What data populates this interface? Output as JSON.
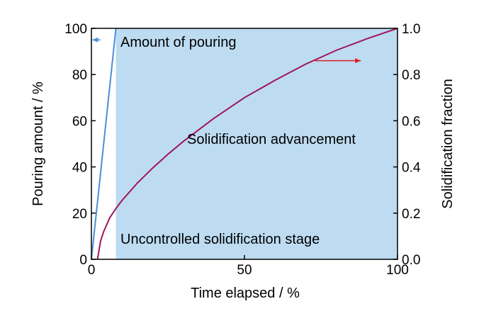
{
  "chart_data": {
    "type": "line",
    "xlabel": "Time elapsed / %",
    "ylabel_left": "Pouring amount / %",
    "ylabel_right": "Solidification fraction",
    "xlim": [
      0,
      100
    ],
    "ylim_left": [
      0,
      100
    ],
    "ylim_right": [
      0,
      1.0
    ],
    "x_ticks": [
      "0",
      "50",
      "100"
    ],
    "y_left_ticks": [
      "0",
      "20",
      "40",
      "60",
      "80",
      "100"
    ],
    "y_right_ticks": [
      "0.0",
      "0.2",
      "0.4",
      "0.6",
      "0.8",
      "1.0"
    ],
    "shaded_region": {
      "x": [
        8,
        100
      ],
      "color": "#bddcf2"
    },
    "series": [
      {
        "axis": "left",
        "color": "#4a8fd8",
        "x": [
          0,
          8
        ],
        "y": [
          0,
          100
        ]
      },
      {
        "axis": "right",
        "color": "#a0155a",
        "x": [
          2,
          2.5,
          3,
          4,
          5,
          6,
          8,
          10,
          15,
          20,
          25,
          30,
          40,
          50,
          60,
          70,
          80,
          90,
          100
        ],
        "y": [
          0.0,
          0.04,
          0.08,
          0.12,
          0.15,
          0.18,
          0.22,
          0.255,
          0.33,
          0.395,
          0.455,
          0.51,
          0.61,
          0.7,
          0.775,
          0.845,
          0.905,
          0.955,
          1.0
        ]
      }
    ],
    "annotations": {
      "pouring": "Amount of pouring",
      "advancement": "Solidification advancement",
      "stage": "Uncontrolled solidification stage"
    },
    "arrows": {
      "left": {
        "color": "#4a8fd8",
        "at": [
          3,
          95
        ],
        "to": [
          0.3,
          95
        ]
      },
      "right": {
        "color": "#e02020",
        "at": [
          73,
          86
        ],
        "to": [
          88,
          86
        ]
      }
    }
  }
}
